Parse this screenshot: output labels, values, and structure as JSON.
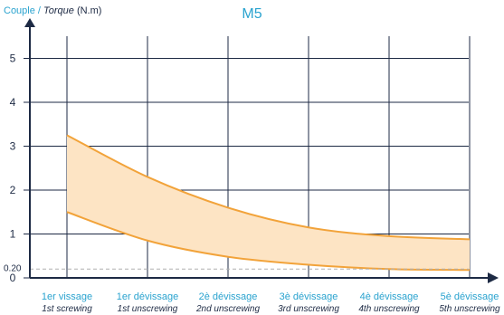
{
  "chart_data": {
    "type": "area",
    "title": "M5",
    "ylabel": {
      "fr": "Couple",
      "separator": "/",
      "en": "Torque",
      "unit": "(N.m)"
    },
    "xlabel": "",
    "categories": [
      {
        "fr": "1er vissage",
        "en": "1st screwing"
      },
      {
        "fr": "1er dévissage",
        "en": "1st unscrewing"
      },
      {
        "fr": "2è dévissage",
        "en": "2nd unscrewing"
      },
      {
        "fr": "3è dévissage",
        "en": "3rd unscrewing"
      },
      {
        "fr": "4è dévissage",
        "en": "4th unscrewing"
      },
      {
        "fr": "5è dévissage",
        "en": "5th unscrewing"
      }
    ],
    "series": [
      {
        "role": "upper",
        "values": [
          3.25,
          2.3,
          1.6,
          1.15,
          0.95,
          0.88
        ]
      },
      {
        "role": "lower",
        "values": [
          1.5,
          0.85,
          0.48,
          0.3,
          0.2,
          0.18
        ]
      }
    ],
    "ylim": [
      0,
      5.6
    ],
    "yticks": [
      "0",
      "1",
      "2",
      "3",
      "4",
      "5"
    ],
    "reference_line": {
      "value": 0.2,
      "label": "0.20"
    },
    "grid": true,
    "colors": {
      "band_fill": "#fde4c4",
      "band_line": "#f2a33a",
      "grid": "#1d2a44",
      "axis": "#1d2a44",
      "category_fr": "#2aa3cf",
      "category_en": "#1d2a44",
      "reference": "#b0b0b0"
    }
  }
}
